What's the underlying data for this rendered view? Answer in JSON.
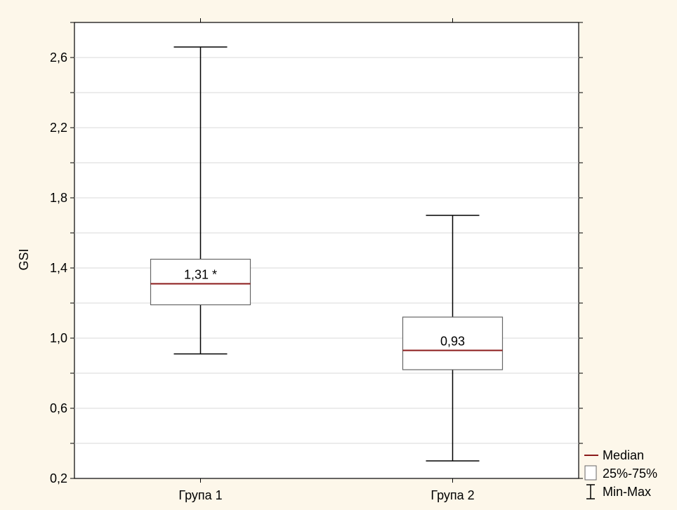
{
  "chart_data": {
    "type": "boxplot",
    "ylabel": "GSI",
    "xlabel": "",
    "ylim": [
      0.2,
      2.8
    ],
    "yticks": [
      0.2,
      0.6,
      1.0,
      1.4,
      1.8,
      2.2,
      2.6
    ],
    "ytick_labels": [
      "0,2",
      "0,6",
      "1,0",
      "1,4",
      "1,8",
      "2,2",
      "2,6"
    ],
    "grid": true,
    "legend_position": "bottom-right",
    "categories": [
      "Група 1",
      "Група 2"
    ],
    "boxes": [
      {
        "category": "Група 1",
        "min": 0.91,
        "q1": 1.19,
        "median": 1.31,
        "q3": 1.45,
        "max": 2.66,
        "label": "1,31 *"
      },
      {
        "category": "Група 2",
        "min": 0.3,
        "q1": 0.82,
        "median": 0.93,
        "q3": 1.12,
        "max": 1.7,
        "label": "0,93"
      }
    ],
    "legend": [
      {
        "key": "median",
        "label": "Median"
      },
      {
        "key": "iqr",
        "label": "25%-75%"
      },
      {
        "key": "range",
        "label": "Min-Max"
      }
    ],
    "colors": {
      "background": "#fdf7ea",
      "plot_background": "#ffffff",
      "median": "#8b1a1a",
      "grid": "#d8d8d8",
      "ink": "#000000",
      "box_border": "#666666"
    }
  }
}
